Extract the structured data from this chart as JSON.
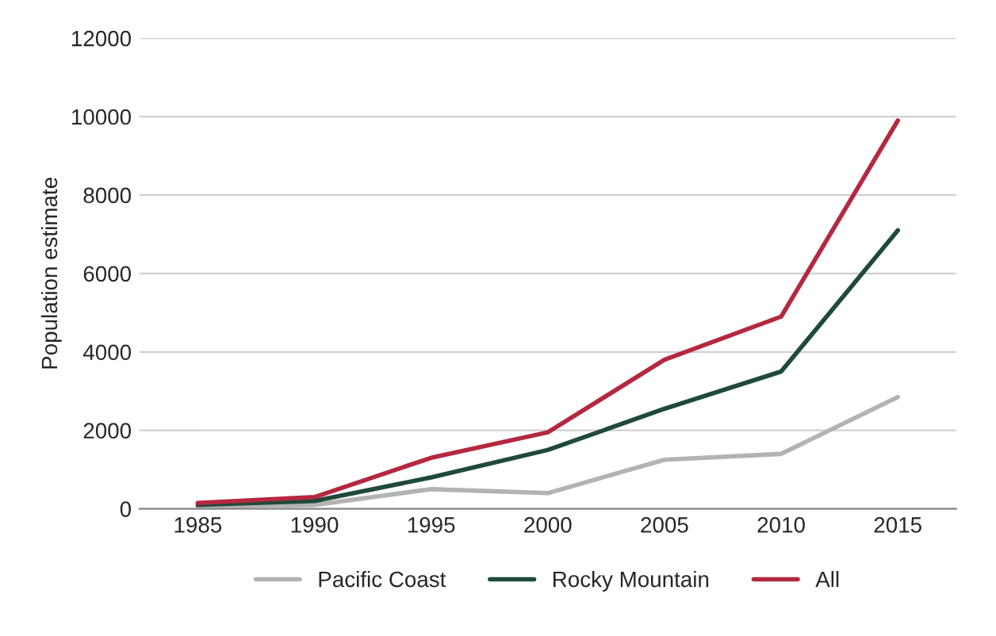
{
  "chart_data": {
    "type": "line",
    "ylabel": "Population estimate",
    "categories": [
      "1985",
      "1990",
      "1995",
      "2000",
      "2005",
      "2010",
      "2015"
    ],
    "series": [
      {
        "name": "Pacific Coast",
        "color": "#b3b3b3",
        "values": [
          50,
          100,
          500,
          400,
          1250,
          1400,
          2850
        ]
      },
      {
        "name": "Rocky Mountain",
        "color": "#1f4a3a",
        "values": [
          100,
          200,
          800,
          1500,
          2550,
          3500,
          7100
        ]
      },
      {
        "name": "All",
        "color": "#b5283f",
        "values": [
          150,
          300,
          1300,
          1950,
          3800,
          4900,
          9900
        ]
      }
    ],
    "ylim": [
      0,
      12000
    ],
    "yticks": [
      0,
      2000,
      4000,
      6000,
      8000,
      10000,
      12000
    ],
    "grid": "y",
    "legend": "bottom",
    "marker": "none",
    "line_style": "solid"
  }
}
